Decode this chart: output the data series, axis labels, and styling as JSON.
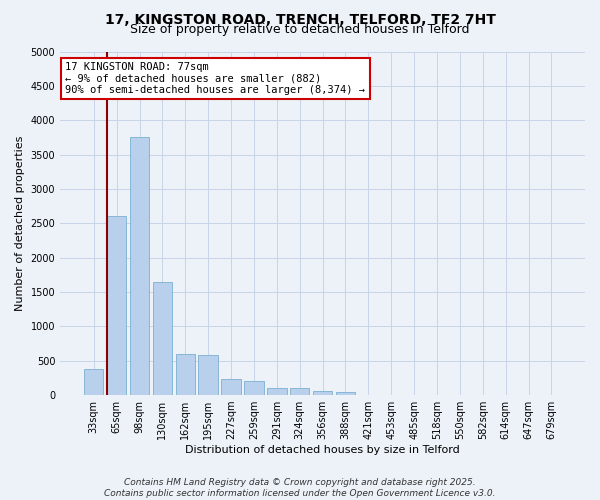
{
  "title_line1": "17, KINGSTON ROAD, TRENCH, TELFORD, TF2 7HT",
  "title_line2": "Size of property relative to detached houses in Telford",
  "xlabel": "Distribution of detached houses by size in Telford",
  "ylabel": "Number of detached properties",
  "categories": [
    "33sqm",
    "65sqm",
    "98sqm",
    "130sqm",
    "162sqm",
    "195sqm",
    "227sqm",
    "259sqm",
    "291sqm",
    "324sqm",
    "356sqm",
    "388sqm",
    "421sqm",
    "453sqm",
    "485sqm",
    "518sqm",
    "550sqm",
    "582sqm",
    "614sqm",
    "647sqm",
    "679sqm"
  ],
  "values": [
    380,
    2600,
    3750,
    1650,
    600,
    580,
    230,
    200,
    110,
    100,
    55,
    45,
    0,
    0,
    0,
    0,
    0,
    0,
    0,
    0,
    0
  ],
  "bar_color": "#b8d0eb",
  "bar_edge_color": "#7aafd4",
  "vline_x": 1,
  "vline_color": "#8b0000",
  "annotation_text": "17 KINGSTON ROAD: 77sqm\n← 9% of detached houses are smaller (882)\n90% of semi-detached houses are larger (8,374) →",
  "annotation_box_facecolor": "#ffffff",
  "annotation_box_edgecolor": "#cc0000",
  "ylim": [
    0,
    5000
  ],
  "yticks": [
    0,
    500,
    1000,
    1500,
    2000,
    2500,
    3000,
    3500,
    4000,
    4500,
    5000
  ],
  "grid_color": "#c8d4e8",
  "background_color": "#edf2f9",
  "footer_line1": "Contains HM Land Registry data © Crown copyright and database right 2025.",
  "footer_line2": "Contains public sector information licensed under the Open Government Licence v3.0.",
  "title_fontsize": 10,
  "subtitle_fontsize": 9,
  "xlabel_fontsize": 8,
  "ylabel_fontsize": 8,
  "tick_fontsize": 7,
  "footer_fontsize": 6.5,
  "annotation_fontsize": 7.5
}
